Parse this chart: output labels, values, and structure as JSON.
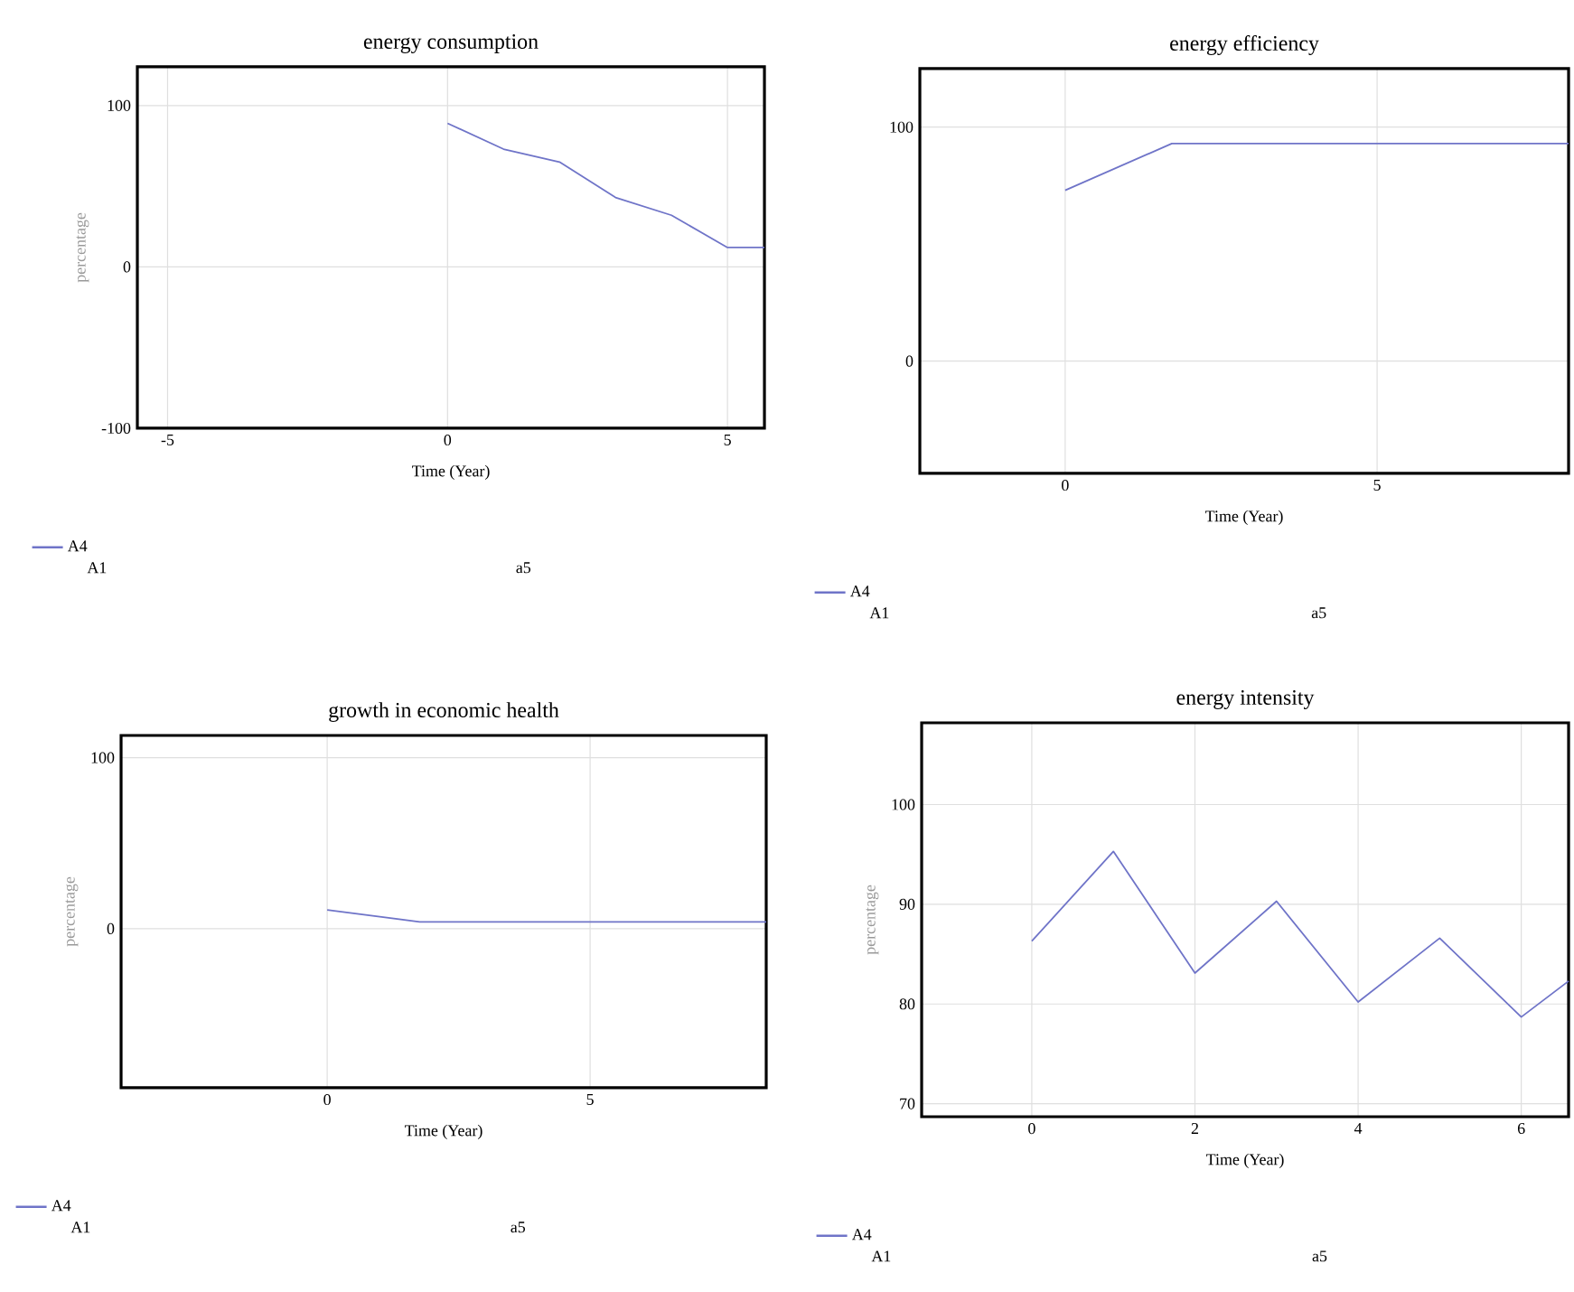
{
  "chart_data": [
    {
      "type": "line",
      "title": "energy consumption",
      "xlabel": "Time (Year)",
      "ylabel": "percentage",
      "xlim": [
        -5.54,
        5.66
      ],
      "ylim": [
        -100,
        124
      ],
      "xticks": [
        -5,
        0,
        5
      ],
      "yticks": [
        -100,
        0,
        100
      ],
      "grid": true,
      "legend": "bottom",
      "annotations": [
        "A1",
        "a5"
      ],
      "series": [
        {
          "name": "A4",
          "color": "#6f74c8",
          "x": [
            0,
            1,
            2,
            3,
            4,
            5,
            5.66
          ],
          "values": [
            89,
            73,
            65,
            43,
            32,
            12,
            12
          ]
        }
      ]
    },
    {
      "type": "line",
      "title": "energy efficiency",
      "xlabel": "Time (Year)",
      "xlim": [
        -2.33,
        8.07
      ],
      "ylim": [
        -48,
        125
      ],
      "xticks": [
        0,
        5
      ],
      "yticks": [
        0,
        100
      ],
      "grid": true,
      "legend": "bottom",
      "annotations": [
        "A1",
        "a5"
      ],
      "series": [
        {
          "name": "A4",
          "color": "#6f74c8",
          "x": [
            0,
            1.71,
            8.07
          ],
          "values": [
            73,
            93,
            93
          ]
        }
      ]
    },
    {
      "type": "line",
      "title": "growth in economic health",
      "xlabel": "Time (Year)",
      "ylabel": "percentage",
      "xlim": [
        -3.92,
        8.35
      ],
      "ylim": [
        -93,
        113
      ],
      "xticks": [
        0,
        5
      ],
      "yticks": [
        0,
        100
      ],
      "grid": true,
      "legend": "bottom",
      "annotations": [
        "A1",
        "a5"
      ],
      "series": [
        {
          "name": "A4",
          "color": "#6f74c8",
          "x": [
            0,
            1.76,
            8.35
          ],
          "values": [
            11,
            4,
            4
          ]
        }
      ]
    },
    {
      "type": "line",
      "title": "energy intensity",
      "xlabel": "Time (Year)",
      "ylabel": "percentage",
      "xlim": [
        -1.35,
        6.58
      ],
      "ylim": [
        68.7,
        108.2
      ],
      "xticks": [
        0,
        2,
        4,
        6
      ],
      "yticks": [
        70,
        80,
        90,
        100
      ],
      "grid": true,
      "legend": "bottom",
      "annotations": [
        "A1",
        "a5"
      ],
      "series": [
        {
          "name": "A4",
          "color": "#6f74c8",
          "x": [
            0,
            1,
            2,
            3,
            4,
            5,
            6,
            6.58
          ],
          "values": [
            86.3,
            95.3,
            83.1,
            90.3,
            80.2,
            86.6,
            78.7,
            82.3
          ]
        }
      ]
    }
  ]
}
